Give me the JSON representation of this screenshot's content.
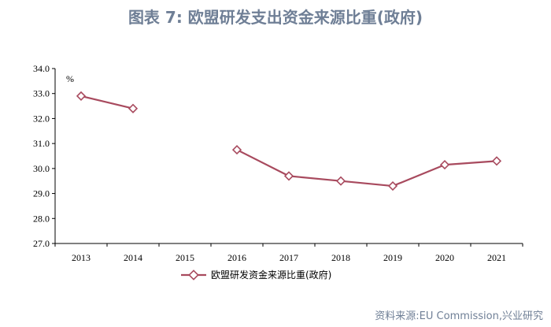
{
  "header": {
    "title": "图表 7:   欧盟研发支出资金来源比重(政府)"
  },
  "footer": {
    "source": "资料来源:EU Commission,兴业研究"
  },
  "chart_data": {
    "type": "line",
    "unit_label": "%",
    "categories": [
      "2013",
      "2014",
      "2015",
      "2016",
      "2017",
      "2018",
      "2019",
      "2020",
      "2021"
    ],
    "series": [
      {
        "name": "欧盟研发资金来源比重(政府)",
        "values": [
          32.9,
          32.4,
          null,
          30.75,
          29.7,
          29.5,
          29.3,
          30.15,
          30.3
        ],
        "color": "#a84a5e"
      }
    ],
    "ylim": [
      27.0,
      34.0
    ],
    "yticks": [
      "27.0",
      "28.0",
      "29.0",
      "30.0",
      "31.0",
      "32.0",
      "33.0",
      "34.0"
    ],
    "grid": false,
    "legend": "bottom"
  }
}
